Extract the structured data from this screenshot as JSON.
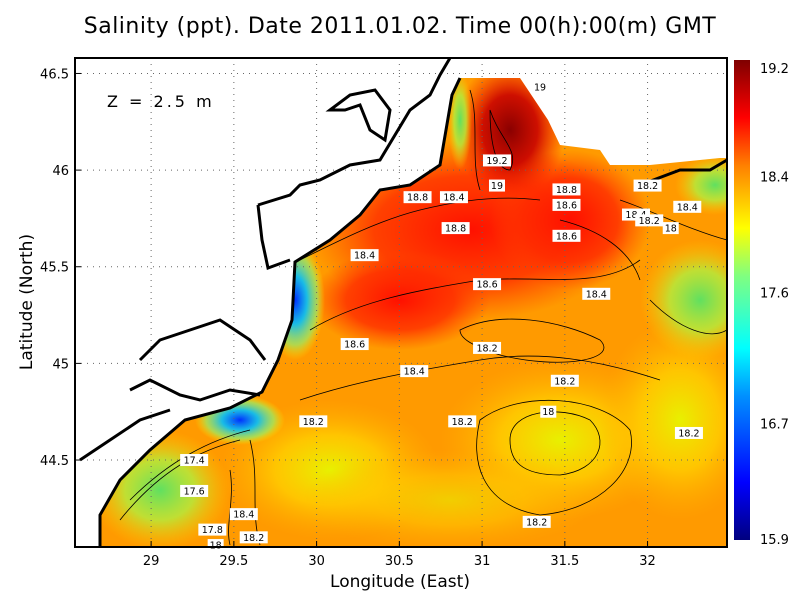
{
  "title": "Salinity (ppt). Date 2011.01.02. Time 00(h):00(m) GMT",
  "chart_data": {
    "type": "heatmap",
    "depth_label": "Z = 2.5 m",
    "xlabel": "Longitude (East)",
    "ylabel": "Latitude (North)",
    "xlim": [
      28.54,
      32.48
    ],
    "ylim": [
      44.05,
      46.58
    ],
    "xticks": [
      "29",
      "29.5",
      "30",
      "30.5",
      "31",
      "31.5",
      "32"
    ],
    "yticks": [
      "46.5",
      "46",
      "45.5",
      "45",
      "44.5"
    ],
    "grid": true,
    "colorbar": {
      "min": 15.9,
      "max": 19.2,
      "tick_labels": [
        "19.2",
        "18.4",
        "17.6",
        "16.7",
        "15.9"
      ],
      "colors": [
        "#00007f",
        "#0000ff",
        "#0080ff",
        "#00ffff",
        "#80ff80",
        "#ffff00",
        "#ff8000",
        "#ff0000",
        "#7f0000"
      ],
      "placement": "right"
    },
    "contour_labels": [
      {
        "text": "19",
        "lon": 31.35,
        "lat": 46.43
      },
      {
        "text": "19.2",
        "lon": 31.09,
        "lat": 46.05
      },
      {
        "text": "19",
        "lon": 31.09,
        "lat": 45.92
      },
      {
        "text": "18.8",
        "lon": 30.61,
        "lat": 45.86
      },
      {
        "text": "18.4",
        "lon": 30.83,
        "lat": 45.86
      },
      {
        "text": "18.8",
        "lon": 31.51,
        "lat": 45.9
      },
      {
        "text": "18.6",
        "lon": 31.51,
        "lat": 45.82
      },
      {
        "text": "18.2",
        "lon": 32.0,
        "lat": 45.92
      },
      {
        "text": "18.4",
        "lon": 32.24,
        "lat": 45.81
      },
      {
        "text": "18.4",
        "lon": 31.93,
        "lat": 45.77
      },
      {
        "text": "18.2",
        "lon": 32.01,
        "lat": 45.74
      },
      {
        "text": "18",
        "lon": 32.14,
        "lat": 45.7
      },
      {
        "text": "18.8",
        "lon": 30.84,
        "lat": 45.7
      },
      {
        "text": "18.6",
        "lon": 31.51,
        "lat": 45.66
      },
      {
        "text": "18.4",
        "lon": 30.29,
        "lat": 45.56
      },
      {
        "text": "18.6",
        "lon": 31.03,
        "lat": 45.41
      },
      {
        "text": "18.4",
        "lon": 31.69,
        "lat": 45.36
      },
      {
        "text": "18.6",
        "lon": 30.23,
        "lat": 45.1
      },
      {
        "text": "18.2",
        "lon": 31.03,
        "lat": 45.08
      },
      {
        "text": "18.4",
        "lon": 30.59,
        "lat": 44.96
      },
      {
        "text": "18.2",
        "lon": 31.5,
        "lat": 44.91
      },
      {
        "text": "18.2",
        "lon": 29.98,
        "lat": 44.7
      },
      {
        "text": "18.2",
        "lon": 30.88,
        "lat": 44.7
      },
      {
        "text": "18",
        "lon": 31.4,
        "lat": 44.75
      },
      {
        "text": "18.2",
        "lon": 32.25,
        "lat": 44.64
      },
      {
        "text": "17.4",
        "lon": 29.26,
        "lat": 44.5
      },
      {
        "text": "17.6",
        "lon": 29.26,
        "lat": 44.34
      },
      {
        "text": "18.4",
        "lon": 29.56,
        "lat": 44.22
      },
      {
        "text": "17.8",
        "lon": 29.37,
        "lat": 44.14
      },
      {
        "text": "18.2",
        "lon": 29.62,
        "lat": 44.1
      },
      {
        "text": "18",
        "lon": 29.39,
        "lat": 44.06
      },
      {
        "text": "18.2",
        "lon": 31.33,
        "lat": 44.18
      }
    ]
  }
}
